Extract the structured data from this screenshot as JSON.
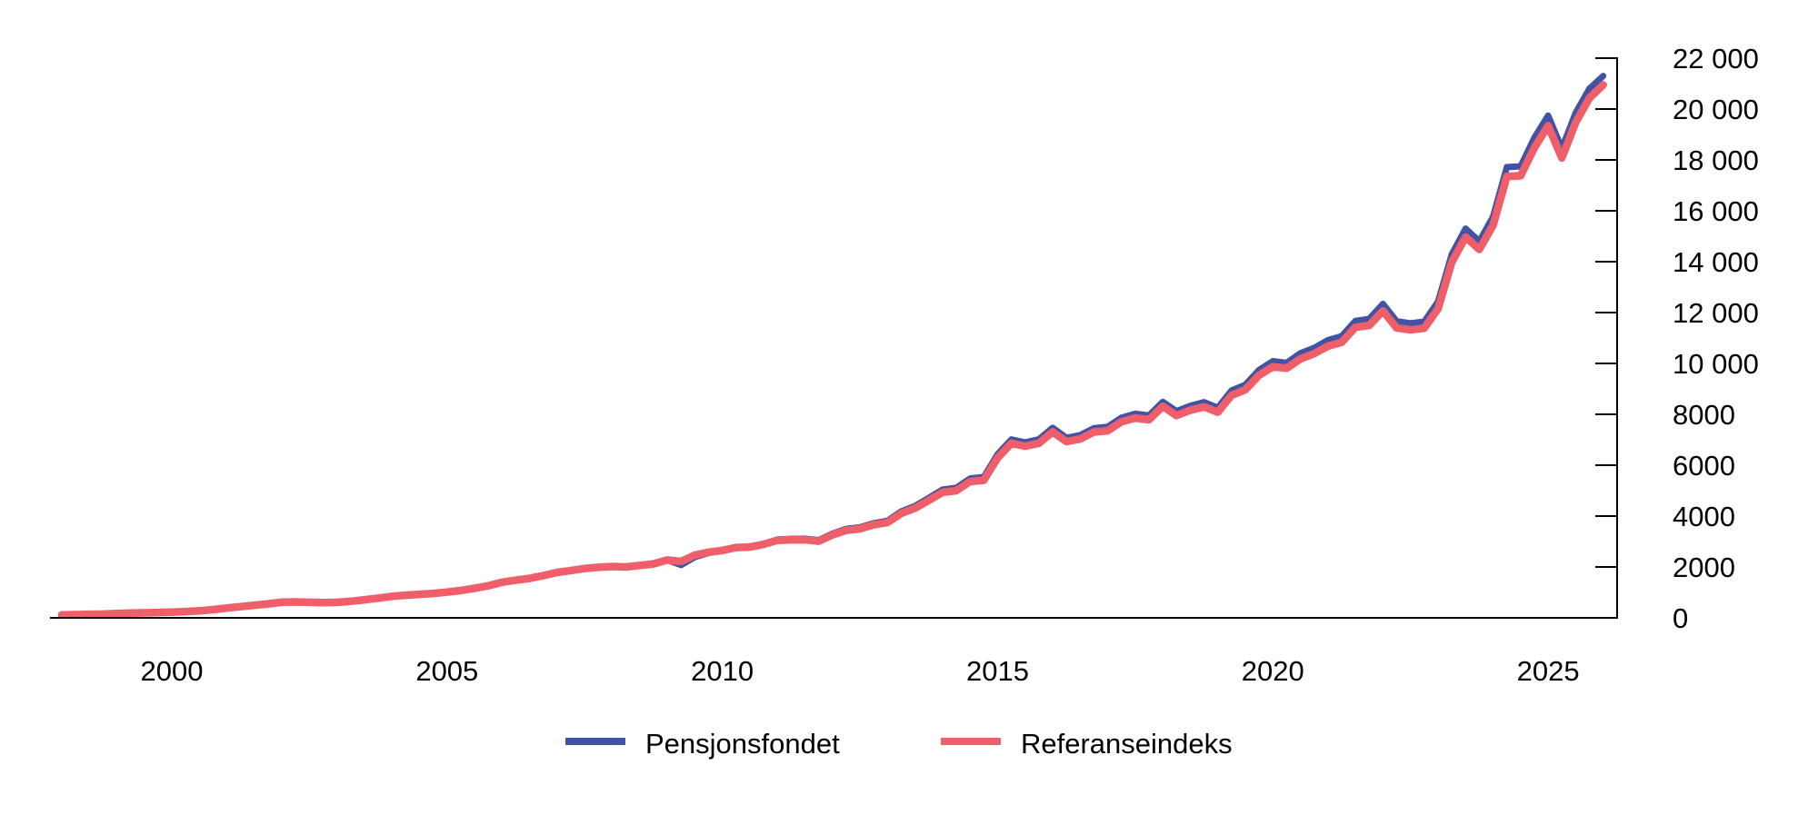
{
  "figure": {
    "background": "#ffffff",
    "text_color": "#000000",
    "axis_color": "#000000"
  },
  "legend": {
    "items": [
      {
        "label": "Pensjonsfondet",
        "color": "#4053a4"
      },
      {
        "label": "Referanseindeks",
        "color": "#ef5f6a"
      }
    ]
  },
  "chart_data": {
    "type": "line",
    "title": "",
    "xlabel": "",
    "ylabel": "",
    "grid": false,
    "legend_position": "bottom-center",
    "x_axis": {
      "min": 1997.75,
      "max": 2026.25,
      "ticks": [
        {
          "v": 2000,
          "label": "2000"
        },
        {
          "v": 2005,
          "label": "2005"
        },
        {
          "v": 2010,
          "label": "2010"
        },
        {
          "v": 2015,
          "label": "2015"
        },
        {
          "v": 2020,
          "label": "2020"
        },
        {
          "v": 2025,
          "label": "2025"
        }
      ]
    },
    "y_axis": {
      "min": 0,
      "max": 22800,
      "side": "right",
      "ticks": [
        {
          "v": 0,
          "label": "0"
        },
        {
          "v": 2000,
          "label": "2000"
        },
        {
          "v": 4000,
          "label": "4000"
        },
        {
          "v": 6000,
          "label": "6000"
        },
        {
          "v": 8000,
          "label": "8000"
        },
        {
          "v": 10000,
          "label": "10 000"
        },
        {
          "v": 12000,
          "label": "12 000"
        },
        {
          "v": 14000,
          "label": "14 000"
        },
        {
          "v": 16000,
          "label": "16 000"
        },
        {
          "v": 18000,
          "label": "18 000"
        },
        {
          "v": 20000,
          "label": "20 000"
        },
        {
          "v": 22000,
          "label": "22 000"
        }
      ]
    },
    "x": [
      1998.0,
      1998.25,
      1998.5,
      1998.75,
      1999.0,
      1999.25,
      1999.5,
      1999.75,
      2000.0,
      2000.25,
      2000.5,
      2000.75,
      2001.0,
      2001.25,
      2001.5,
      2001.75,
      2002.0,
      2002.25,
      2002.5,
      2002.75,
      2003.0,
      2003.25,
      2003.5,
      2003.75,
      2004.0,
      2004.25,
      2004.5,
      2004.75,
      2005.0,
      2005.25,
      2005.5,
      2005.75,
      2006.0,
      2006.25,
      2006.5,
      2006.75,
      2007.0,
      2007.25,
      2007.5,
      2007.75,
      2008.0,
      2008.25,
      2008.5,
      2008.75,
      2009.0,
      2009.25,
      2009.5,
      2009.75,
      2010.0,
      2010.25,
      2010.5,
      2010.75,
      2011.0,
      2011.25,
      2011.5,
      2011.75,
      2012.0,
      2012.25,
      2012.5,
      2012.75,
      2013.0,
      2013.25,
      2013.5,
      2013.75,
      2014.0,
      2014.25,
      2014.5,
      2014.75,
      2015.0,
      2015.25,
      2015.5,
      2015.75,
      2016.0,
      2016.25,
      2016.5,
      2016.75,
      2017.0,
      2017.25,
      2017.5,
      2017.75,
      2018.0,
      2018.25,
      2018.5,
      2018.75,
      2019.0,
      2019.25,
      2019.5,
      2019.75,
      2020.0,
      2020.25,
      2020.5,
      2020.75,
      2021.0,
      2021.25,
      2021.5,
      2021.75,
      2022.0,
      2022.25,
      2022.5,
      2022.75,
      2023.0,
      2023.25,
      2023.5,
      2023.75,
      2024.0,
      2024.25,
      2024.5,
      2024.75,
      2025.0,
      2025.25,
      2025.5,
      2025.75,
      2026.0
    ],
    "series": [
      {
        "name": "Pensjonsfondet",
        "color": "#4053a4",
        "values": [
          113,
          125,
          138,
          148,
          172,
          187,
          197,
          210,
          222,
          245,
          275,
          320,
          386,
          440,
          495,
          550,
          614,
          625,
          612,
          600,
          609,
          650,
          710,
          775,
          845,
          890,
          925,
          960,
          1012,
          1075,
          1160,
          1260,
          1399,
          1480,
          1555,
          1660,
          1784,
          1860,
          1940,
          1985,
          2019,
          2000,
          2060,
          2120,
          2275,
          2076,
          2385,
          2549,
          2640,
          2763,
          2792,
          2908,
          3077,
          3102,
          3111,
          3055,
          3312,
          3496,
          3561,
          3723,
          3816,
          4182,
          4397,
          4714,
          5038,
          5110,
          5478,
          5534,
          6431,
          7012,
          6897,
          7019,
          7471,
          7079,
          7177,
          7458,
          7510,
          7867,
          8020,
          7952,
          8488,
          8124,
          8335,
          8478,
          8256,
          8938,
          9162,
          9742,
          10088,
          10022,
          10400,
          10610,
          10914,
          11073,
          11673,
          11753,
          12340,
          11657,
          11578,
          11643,
          12429,
          14290,
          15299,
          14801,
          15765,
          17719,
          17745,
          18870,
          19742,
          18450,
          19850,
          20800,
          21300
        ]
      },
      {
        "name": "Referanseindeks",
        "color": "#ef5f6a",
        "values": [
          113,
          125,
          138,
          148,
          172,
          187,
          197,
          210,
          222,
          245,
          275,
          320,
          386,
          440,
          495,
          550,
          614,
          625,
          612,
          600,
          609,
          650,
          710,
          775,
          845,
          890,
          925,
          960,
          1012,
          1075,
          1160,
          1260,
          1399,
          1480,
          1555,
          1660,
          1784,
          1860,
          1940,
          1985,
          2019,
          2000,
          2060,
          2120,
          2275,
          2216,
          2465,
          2579,
          2650,
          2763,
          2782,
          2888,
          3047,
          3067,
          3071,
          3010,
          3262,
          3441,
          3501,
          3658,
          3746,
          4107,
          4312,
          4619,
          4933,
          5000,
          5358,
          5409,
          6291,
          6862,
          6747,
          6864,
          7311,
          6929,
          7027,
          7303,
          7355,
          7707,
          7855,
          7787,
          8313,
          7954,
          8160,
          8298,
          8081,
          8748,
          8967,
          9537,
          9873,
          9812,
          10180,
          10385,
          10679,
          10833,
          11418,
          11493,
          12065,
          11397,
          11323,
          11383,
          12149,
          13980,
          14969,
          14481,
          15425,
          17349,
          17375,
          18480,
          19342,
          18080,
          19470,
          20430,
          20950
        ]
      }
    ]
  }
}
